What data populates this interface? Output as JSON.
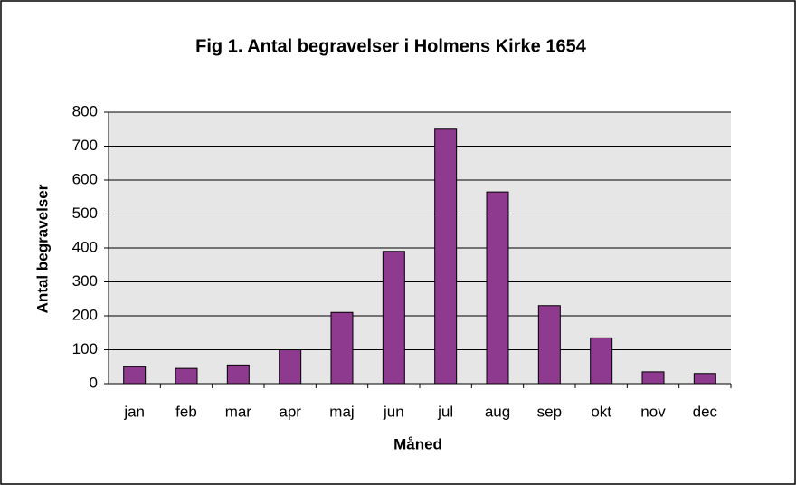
{
  "chart_data": {
    "type": "bar",
    "title": "Fig 1. Antal begravelser i Holmens Kirke 1654",
    "x_label": "Måned",
    "y_label": "Antal begravelser",
    "categories": [
      "jan",
      "feb",
      "mar",
      "apr",
      "maj",
      "jun",
      "jul",
      "aug",
      "sep",
      "okt",
      "nov",
      "dec"
    ],
    "values": [
      50,
      45,
      55,
      100,
      210,
      390,
      750,
      565,
      230,
      135,
      35,
      30
    ],
    "color": "#8e3a8f",
    "ylim": [
      0,
      800
    ],
    "yticks": [
      0,
      100,
      200,
      300,
      400,
      500,
      600,
      700,
      800
    ],
    "grid": true
  }
}
